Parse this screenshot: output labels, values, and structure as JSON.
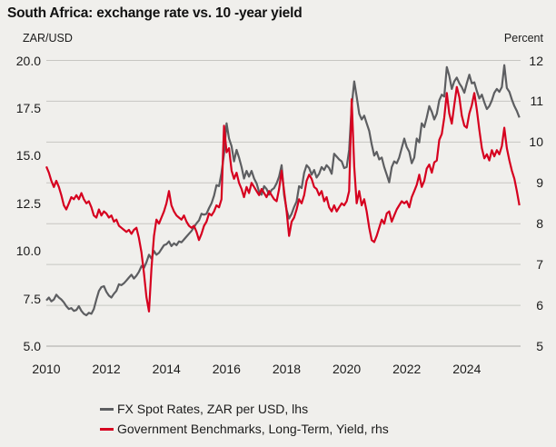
{
  "header": {
    "title": "South Africa: exchange rate vs. 10 -year yield"
  },
  "chart_data": {
    "type": "line",
    "title": "South Africa: exchange rate vs. 10 -year yield",
    "grid": "horizontal",
    "legend_position": "bottom-left",
    "left_axis": {
      "label": "ZAR/USD",
      "min": 5,
      "max": 20,
      "ticks": [
        "20.0",
        "17.5",
        "15.0",
        "12.5",
        "10.0",
        "7.5",
        "5.0"
      ]
    },
    "right_axis": {
      "label": "Percent",
      "min": 5,
      "max": 12,
      "ticks": [
        "12",
        "11",
        "10",
        "9",
        "8",
        "7",
        "6",
        "5"
      ]
    },
    "x_axis": {
      "start": 2010.0,
      "end": 2025.79,
      "ticks": [
        "2010",
        "2012",
        "2014",
        "2016",
        "2018",
        "2020",
        "2022",
        "2024"
      ]
    },
    "colors": {
      "fx": "#5d5e61",
      "yield": "#d6001f",
      "grid": "#c7c6c2",
      "axis": "#a8a7a3",
      "background": "#f0efec"
    },
    "series": [
      {
        "name": "FX Spot Rates, ZAR per USD, lhs",
        "axis": "left",
        "color_key": "fx",
        "start": 2010.0,
        "step_years": 0.083333,
        "values": [
          7.4,
          7.55,
          7.35,
          7.45,
          7.7,
          7.55,
          7.45,
          7.3,
          7.1,
          6.95,
          7.0,
          6.85,
          6.9,
          7.1,
          6.85,
          6.7,
          6.62,
          6.75,
          6.7,
          6.95,
          7.45,
          7.9,
          8.1,
          8.15,
          7.85,
          7.65,
          7.55,
          7.75,
          7.9,
          8.25,
          8.2,
          8.3,
          8.45,
          8.6,
          8.75,
          8.55,
          8.7,
          8.9,
          9.2,
          9.1,
          9.4,
          9.8,
          9.6,
          10.0,
          9.8,
          9.9,
          10.1,
          10.3,
          10.35,
          10.5,
          10.25,
          10.4,
          10.3,
          10.5,
          10.45,
          10.6,
          10.75,
          10.9,
          11.05,
          11.25,
          11.45,
          11.6,
          11.95,
          11.9,
          11.95,
          12.25,
          12.5,
          12.9,
          13.45,
          13.4,
          14.1,
          15.1,
          16.7,
          15.9,
          15.5,
          14.7,
          15.3,
          14.9,
          14.4,
          13.8,
          14.2,
          13.9,
          14.2,
          13.8,
          13.55,
          13.1,
          12.95,
          13.4,
          13.25,
          12.95,
          13.2,
          13.3,
          13.55,
          13.9,
          14.5,
          12.95,
          12.15,
          11.7,
          11.95,
          12.3,
          12.6,
          13.4,
          13.3,
          14.1,
          14.5,
          14.35,
          14.0,
          14.25,
          13.85,
          14.05,
          14.4,
          14.25,
          14.5,
          14.35,
          14.05,
          15.1,
          14.95,
          14.8,
          14.7,
          14.35,
          14.4,
          15.3,
          17.6,
          18.9,
          18.1,
          17.2,
          16.9,
          17.1,
          16.7,
          16.3,
          15.6,
          15.0,
          15.2,
          14.8,
          14.9,
          14.4,
          14.0,
          13.6,
          14.4,
          14.7,
          14.6,
          14.9,
          15.4,
          15.9,
          15.45,
          15.2,
          14.6,
          14.9,
          15.9,
          15.7,
          16.7,
          16.5,
          17.0,
          17.6,
          17.3,
          16.9,
          17.2,
          17.9,
          18.2,
          18.1,
          19.65,
          19.2,
          18.5,
          18.9,
          19.1,
          18.8,
          18.6,
          18.3,
          18.8,
          19.25,
          18.8,
          18.85,
          18.4,
          18.0,
          18.2,
          17.8,
          17.45,
          17.6,
          17.9,
          18.3,
          18.5,
          18.35,
          18.6,
          19.75,
          18.55,
          18.35,
          17.95,
          17.6,
          17.35,
          17.0
        ]
      },
      {
        "name": "Government Benchmarks, Long-Term, Yield, rhs",
        "axis": "right",
        "color_key": "yield",
        "start": 2010.0,
        "step_years": 0.083333,
        "values": [
          9.4,
          9.25,
          9.05,
          8.9,
          9.05,
          8.9,
          8.7,
          8.45,
          8.35,
          8.5,
          8.65,
          8.6,
          8.7,
          8.6,
          8.75,
          8.6,
          8.5,
          8.55,
          8.4,
          8.2,
          8.15,
          8.35,
          8.2,
          8.3,
          8.25,
          8.15,
          8.2,
          8.05,
          8.1,
          7.95,
          7.9,
          7.85,
          7.8,
          7.85,
          7.75,
          7.85,
          7.9,
          7.65,
          7.3,
          6.8,
          6.2,
          5.85,
          6.9,
          7.7,
          8.1,
          8.0,
          8.15,
          8.3,
          8.5,
          8.8,
          8.45,
          8.3,
          8.2,
          8.15,
          8.1,
          8.2,
          8.05,
          7.95,
          7.9,
          7.95,
          7.8,
          7.6,
          7.75,
          7.95,
          8.05,
          8.25,
          8.2,
          8.3,
          8.45,
          8.4,
          8.6,
          10.4,
          9.75,
          9.85,
          9.3,
          9.1,
          9.25,
          9.0,
          8.85,
          8.65,
          8.9,
          8.75,
          9.0,
          8.9,
          8.8,
          8.7,
          8.85,
          8.75,
          8.65,
          8.8,
          8.7,
          8.6,
          8.55,
          8.85,
          9.3,
          8.8,
          8.3,
          7.7,
          8.05,
          8.15,
          8.35,
          8.6,
          8.5,
          8.7,
          9.05,
          9.2,
          9.1,
          8.9,
          8.85,
          8.7,
          8.8,
          8.55,
          8.65,
          8.4,
          8.3,
          8.45,
          8.3,
          8.4,
          8.5,
          8.45,
          8.55,
          8.8,
          11.05,
          9.4,
          8.5,
          8.8,
          8.45,
          8.6,
          8.3,
          7.9,
          7.6,
          7.55,
          7.7,
          7.9,
          8.1,
          8.0,
          8.25,
          8.3,
          8.05,
          8.2,
          8.35,
          8.45,
          8.55,
          8.5,
          8.55,
          8.4,
          8.65,
          8.8,
          8.95,
          9.2,
          8.9,
          9.05,
          9.35,
          9.45,
          9.25,
          9.5,
          9.55,
          10.05,
          10.2,
          10.6,
          11.2,
          10.7,
          10.45,
          10.9,
          11.35,
          11.1,
          10.65,
          10.4,
          10.35,
          10.7,
          10.9,
          11.2,
          10.8,
          10.3,
          9.85,
          9.6,
          9.7,
          9.55,
          9.8,
          9.65,
          9.8,
          9.7,
          9.9,
          10.35,
          9.85,
          9.55,
          9.3,
          9.1,
          8.8,
          8.45
        ]
      }
    ]
  },
  "legend": {
    "fx_label": "FX Spot Rates, ZAR per USD, lhs",
    "yield_label": "Government Benchmarks, Long-Term, Yield, rhs"
  }
}
